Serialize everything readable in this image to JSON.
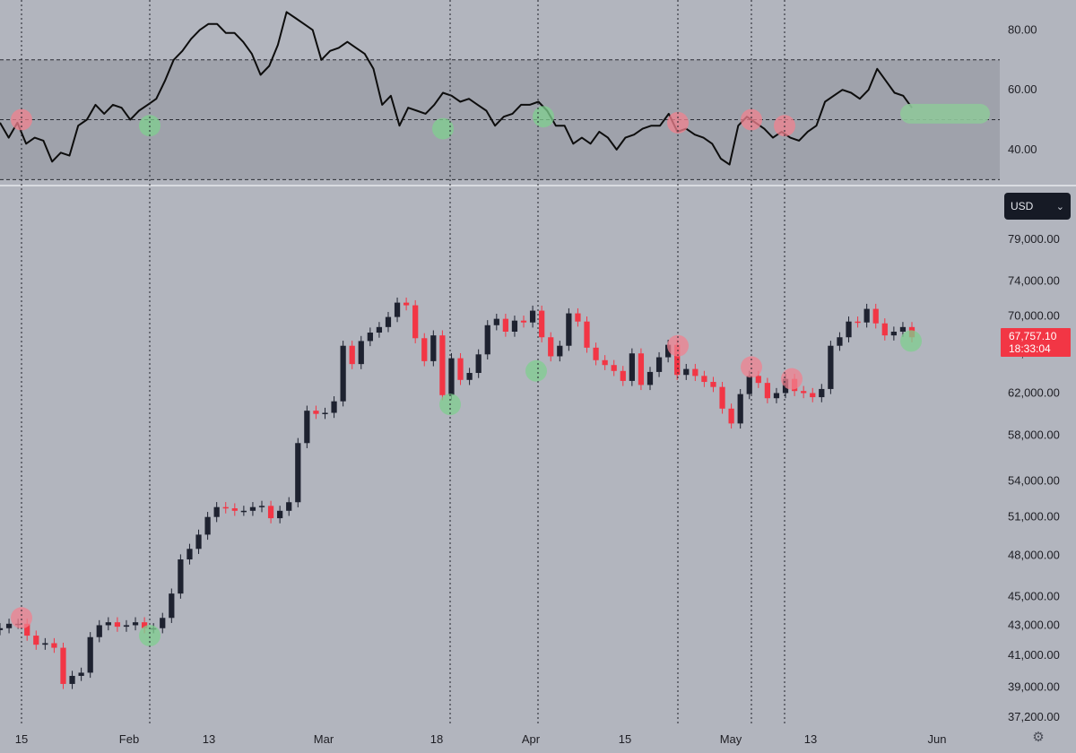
{
  "chart_data": [
    {
      "type": "line",
      "title": "",
      "y_ticks": [
        "80.00",
        "60.00",
        "40.00"
      ],
      "ylim": [
        28,
        90
      ],
      "levels": [
        70,
        50,
        30
      ],
      "band": [
        30,
        70
      ],
      "series": [
        {
          "color": "#0d0d0d",
          "values": [
            49,
            44,
            49,
            42,
            44,
            43,
            36,
            39,
            38,
            48,
            50,
            55,
            52,
            55,
            54,
            50,
            53,
            55,
            57,
            63,
            70,
            73,
            77,
            80,
            82,
            82,
            79,
            79,
            76,
            72,
            65,
            68,
            75,
            86,
            84,
            82,
            80,
            70,
            73,
            74,
            76,
            74,
            72,
            67,
            55,
            58,
            48,
            54,
            53,
            52,
            55,
            59,
            58,
            56,
            57,
            55,
            53,
            48,
            51,
            52,
            55,
            55,
            56,
            53,
            48,
            48,
            42,
            44,
            42,
            46,
            44,
            40,
            44,
            45,
            47,
            48,
            48,
            52,
            46,
            47,
            45,
            44,
            42,
            37,
            35,
            48,
            51,
            49,
            47,
            44,
            46,
            44,
            43,
            46,
            48,
            56,
            58,
            60,
            59,
            57,
            60,
            67,
            63,
            59,
            58,
            54
          ]
        }
      ],
      "markers": {
        "red": [
          [
            24,
            50
          ],
          [
            756,
            49
          ],
          [
            838,
            50
          ],
          [
            875,
            48
          ]
        ],
        "green": [
          [
            167,
            48
          ],
          [
            494,
            47
          ],
          [
            606,
            51
          ]
        ]
      },
      "projection": {
        "color": "#8fc79a",
        "y": 52
      }
    },
    {
      "type": "candlestick",
      "title": "",
      "currency": "USD",
      "y_ticks": [
        "79,000.00",
        "74,000.00",
        "70,000.00",
        "66,000.00",
        "62,000.00",
        "58,000.00",
        "54,000.00",
        "51,000.00",
        "48,000.00",
        "45,000.00",
        "43,000.00",
        "41,000.00",
        "39,000.00",
        "37,200.00"
      ],
      "x_ticks": [
        "15",
        "Feb",
        "13",
        "Mar",
        "18",
        "Apr",
        "15",
        "May",
        "13",
        "Jun"
      ],
      "last_price": "67,757.10",
      "countdown": "18:33:04",
      "up_color": "#1e2230",
      "down_color": "#f23645",
      "closes": [
        42800,
        43100,
        43100,
        42300,
        41700,
        41800,
        41500,
        39200,
        39700,
        39900,
        42200,
        43000,
        43200,
        42900,
        43000,
        43200,
        42800,
        42800,
        43500,
        45200,
        47700,
        48500,
        49600,
        51000,
        51800,
        51700,
        51500,
        51500,
        51800,
        51900,
        50900,
        51500,
        52200,
        57300,
        60300,
        60000,
        60100,
        61200,
        66800,
        64900,
        67300,
        68200,
        68800,
        69900,
        71500,
        71200,
        67600,
        65200,
        67900,
        61800,
        65500,
        63300,
        64000,
        65900,
        69000,
        69700,
        68300,
        69500,
        69300,
        70600,
        67700,
        65700,
        66800,
        70300,
        69400,
        66600,
        65300,
        64800,
        64200,
        63200,
        66000,
        62800,
        64100,
        65600,
        66900,
        63800,
        64400,
        63700,
        63100,
        62600,
        60500,
        59100,
        61900,
        63700,
        63000,
        61500,
        62000,
        63400,
        62200,
        62000,
        61600,
        62400,
        66800,
        67700,
        69400,
        69300,
        70800,
        69200,
        67900,
        68300,
        68800,
        67700
      ]
    }
  ],
  "vertical_lines_dates": [
    "15",
    "Feb",
    "18",
    "Apr",
    "May"
  ]
}
